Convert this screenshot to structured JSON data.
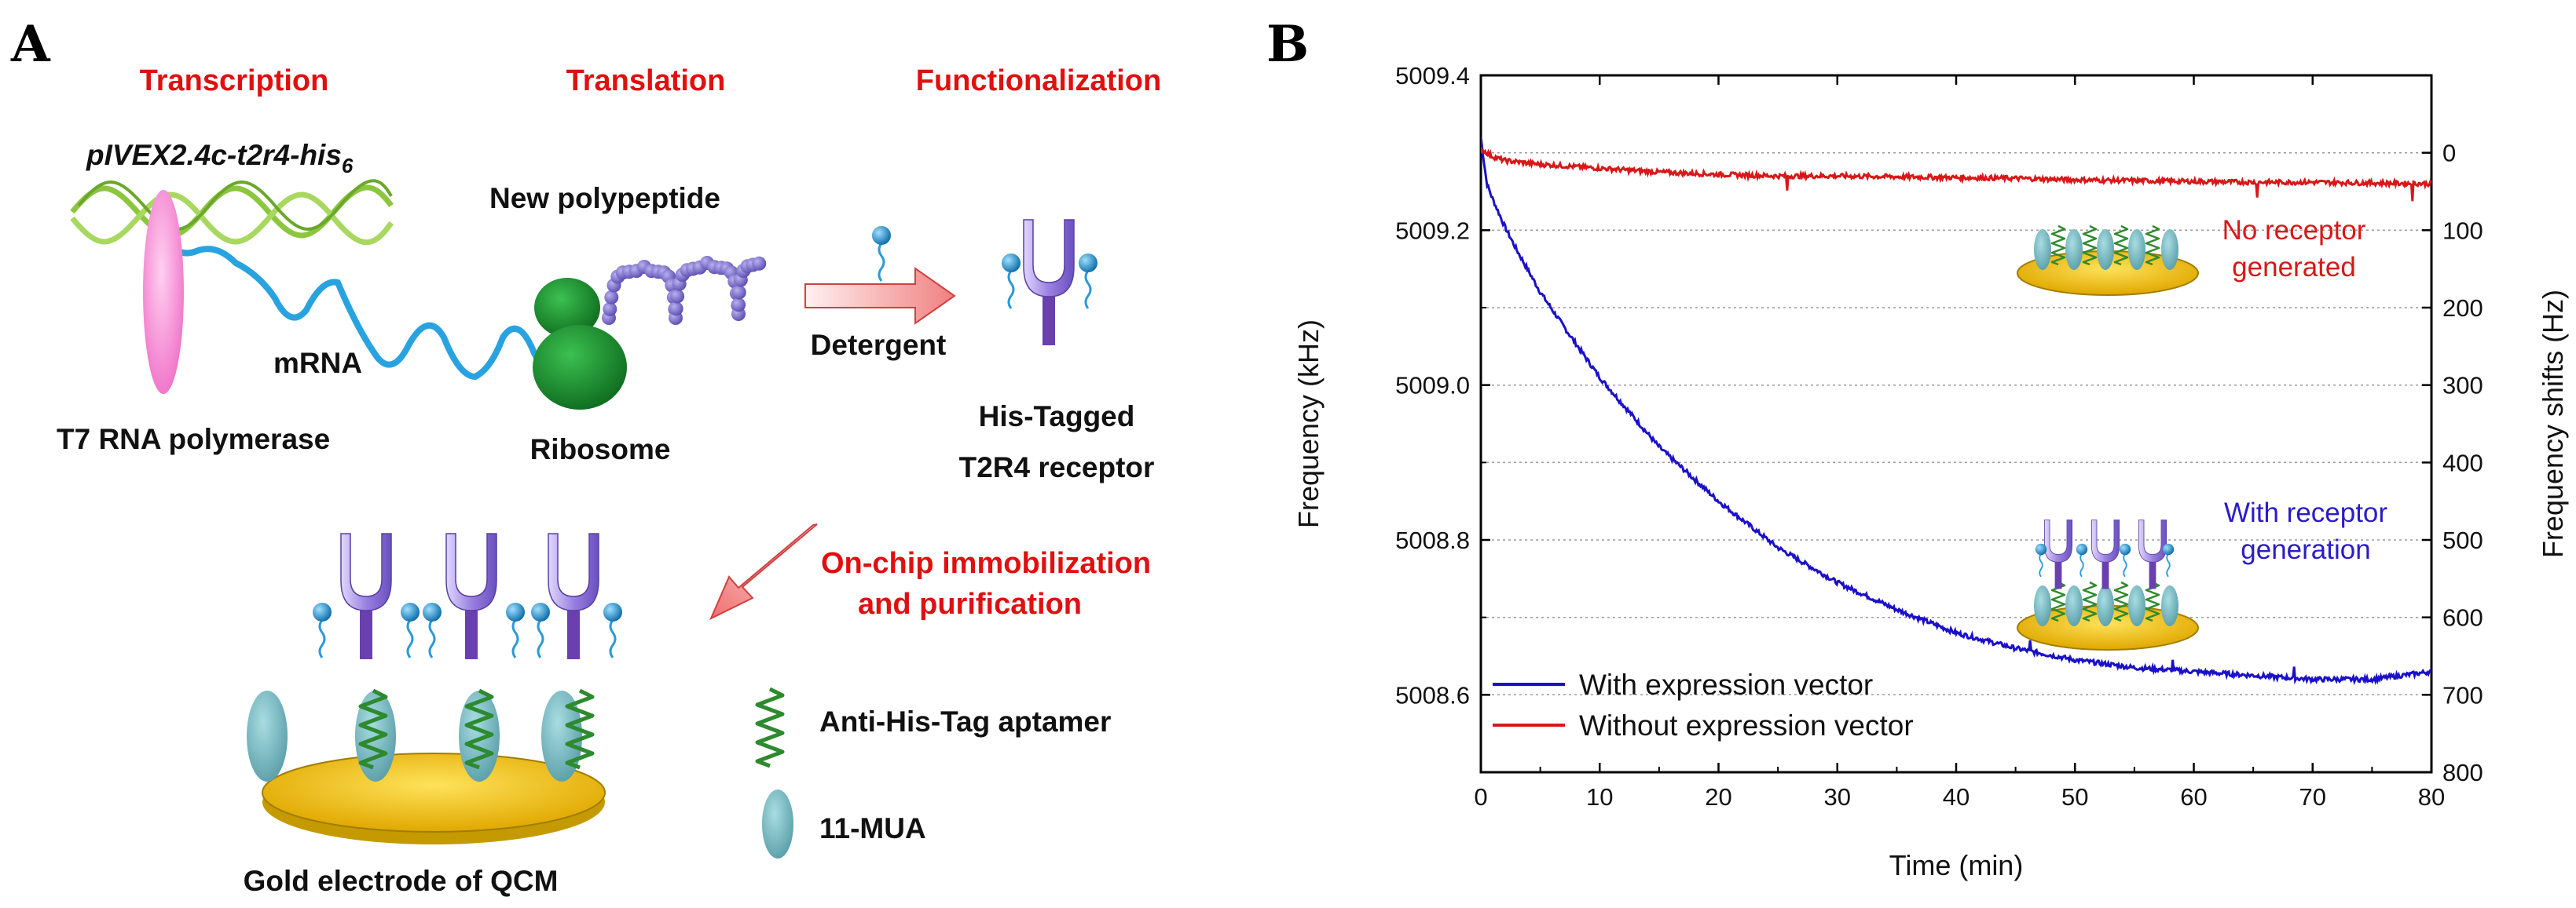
{
  "panel_a": {
    "letter": "A",
    "titles": {
      "transcription": "Transcription",
      "translation": "Translation",
      "functionalization": "Functionalization"
    },
    "vector_label": {
      "main": "pIVEX2.4c-t2r4-his",
      "subscript": "6"
    },
    "mrna_label": "mRNA",
    "polymerase_label": "T7 RNA polymerase",
    "polypeptide_label": "New polypeptide",
    "ribosome_label": "Ribosome",
    "detergent_label": "Detergent",
    "receptor_label_line1": "His-Tagged",
    "receptor_label_line2": "T2R4 receptor",
    "immobilization_line1": "On-chip immobilization",
    "immobilization_line2": "and purification",
    "legend_aptamer": "Anti-His-Tag aptamer",
    "legend_mua": "11-MUA",
    "electrode_label": "Gold electrode of QCM",
    "colors": {
      "title_red": "#e01010",
      "dna_green": "#8cc63f",
      "mrna_blue": "#29a3e0",
      "ribosome_green": "#1e8a32",
      "polypeptide_purple": "#7a6cc4",
      "gold": "#f5c400",
      "mua_teal": "#6fb4bd",
      "aptamer_green": "#2e8a2e",
      "receptor_purple": "#8a70d0",
      "ligand_blue": "#1a8ad0"
    }
  },
  "panel_b": {
    "letter": "B",
    "chart_data": {
      "type": "line",
      "xlabel": "Time (min)",
      "ylabel": "Frequency (kHz)",
      "ylabel_right": "Frequency shifts (Hz)",
      "xlim": [
        0,
        80
      ],
      "ylim": [
        5008.5,
        5009.4
      ],
      "x_ticks": [
        "0",
        "10",
        "20",
        "30",
        "40",
        "50",
        "60",
        "70",
        "80"
      ],
      "y_ticks": [
        "5008.6",
        "5008.8",
        "5009.0",
        "5009.2",
        "5009.4"
      ],
      "y_right_ticks": [
        "0",
        "100",
        "200",
        "300",
        "400",
        "500",
        "600",
        "700",
        "800"
      ],
      "right_axis_zero_at_khz": 5009.3,
      "right_axis_hz_per_khz": 1000,
      "grid": "horizontal dotted",
      "legend_position": "bottom-left",
      "series": [
        {
          "name": "With expression vector",
          "color": "#1a10c8",
          "x": [
            0,
            0.5,
            1,
            2,
            3,
            5,
            7,
            10,
            15,
            20,
            25,
            30,
            35,
            40,
            45,
            50,
            55,
            60,
            65,
            70,
            75,
            80
          ],
          "y": [
            5009.32,
            5009.26,
            5009.24,
            5009.205,
            5009.175,
            5009.12,
            5009.075,
            5009.01,
            5008.92,
            5008.85,
            5008.79,
            5008.745,
            5008.71,
            5008.68,
            5008.66,
            5008.645,
            5008.635,
            5008.63,
            5008.625,
            5008.62,
            5008.62,
            5008.63
          ]
        },
        {
          "name": "Without expression vector",
          "color": "#d81818",
          "x": [
            0,
            1,
            2,
            5,
            10,
            15,
            20,
            25,
            30,
            35,
            40,
            45,
            50,
            55,
            60,
            65,
            70,
            75,
            80
          ],
          "y": [
            5009.305,
            5009.295,
            5009.29,
            5009.285,
            5009.28,
            5009.275,
            5009.272,
            5009.27,
            5009.27,
            5009.269,
            5009.268,
            5009.267,
            5009.265,
            5009.264,
            5009.263,
            5009.262,
            5009.262,
            5009.261,
            5009.26
          ]
        }
      ],
      "annotations": {
        "no_receptor_line1": "No receptor",
        "no_receptor_line2": "generated",
        "with_receptor_line1": "With receptor",
        "with_receptor_line2": "generation"
      }
    }
  }
}
